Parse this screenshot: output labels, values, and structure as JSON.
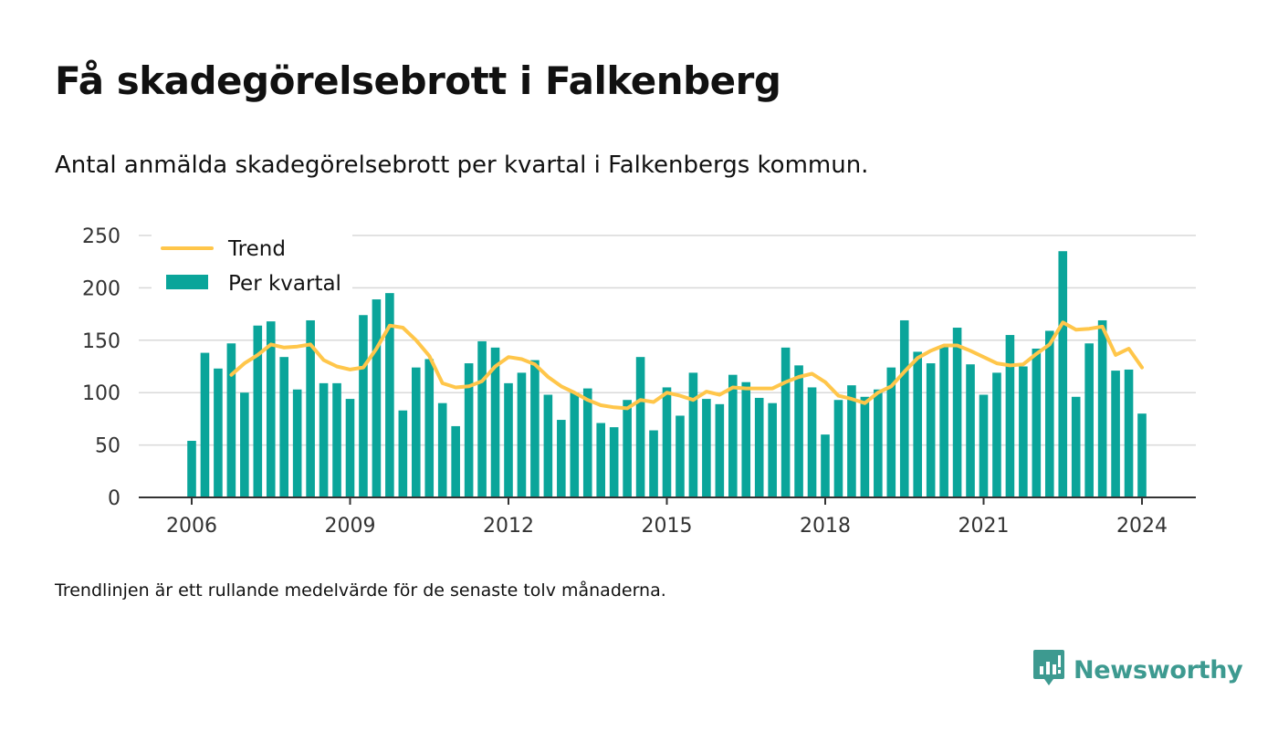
{
  "header": {
    "title": "Få skadegörelsebrott i Falkenberg",
    "subtitle": "Antal anmälda skadegörelsebrott per kvartal i Falkenbergs kommun."
  },
  "footnote": "Trendlinjen är ett rullande medelvärde för de senaste tolv månaderna.",
  "brand": {
    "name": "Newsworthy",
    "icon": "newsworthy-logo-icon",
    "color": "#3d9a90"
  },
  "colors": {
    "bars": "#0aa59a",
    "trend": "#ffc64a",
    "grid": "#d9d9d9",
    "axis": "#333333"
  },
  "chart_data": {
    "type": "bar",
    "legend": {
      "position": "top-left",
      "entries": [
        "Trend",
        "Per kvartal"
      ]
    },
    "grid": true,
    "ylim": [
      0,
      250
    ],
    "yticks": [
      0,
      50,
      100,
      150,
      200,
      250
    ],
    "xticks": [
      "2006",
      "2009",
      "2012",
      "2015",
      "2018",
      "2021",
      "2024"
    ],
    "x_start": "2006 Q1",
    "series": [
      {
        "name": "Per kvartal",
        "type": "bar",
        "values": [
          54,
          138,
          123,
          147,
          100,
          164,
          168,
          134,
          103,
          169,
          109,
          109,
          94,
          174,
          189,
          195,
          83,
          124,
          132,
          90,
          68,
          128,
          149,
          143,
          109,
          119,
          131,
          98,
          74,
          100,
          104,
          71,
          67,
          93,
          134,
          64,
          105,
          78,
          119,
          94,
          89,
          117,
          110,
          95,
          90,
          143,
          126,
          105,
          60,
          93,
          107,
          96,
          103,
          124,
          169,
          139,
          128,
          145,
          162,
          127,
          98,
          119,
          155,
          125,
          142,
          159,
          235,
          96,
          147,
          169,
          121,
          122,
          80
        ]
      },
      {
        "name": "Trend",
        "type": "line",
        "start_index": 3,
        "values": [
          117,
          128,
          136,
          146,
          143,
          144,
          146,
          131,
          125,
          122,
          124,
          142,
          164,
          162,
          150,
          135,
          109,
          105,
          106,
          111,
          125,
          134,
          132,
          127,
          115,
          106,
          100,
          93,
          88,
          86,
          85,
          93,
          91,
          100,
          97,
          93,
          101,
          98,
          105,
          104,
          104,
          104,
          110,
          115,
          118,
          110,
          97,
          94,
          90,
          100,
          106,
          120,
          133,
          140,
          145,
          145,
          140,
          134,
          128,
          126,
          127,
          137,
          146,
          167,
          160,
          161,
          163,
          136,
          142,
          124
        ]
      }
    ]
  }
}
